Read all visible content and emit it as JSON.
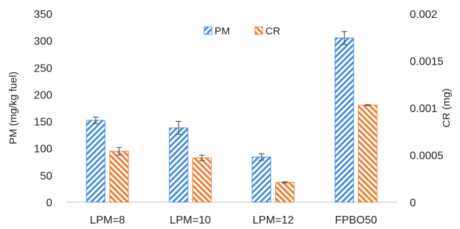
{
  "chart_data": {
    "type": "bar",
    "categories": [
      "LPM=8",
      "LPM=10",
      "LPM=12",
      "FPBO50"
    ],
    "series": [
      {
        "name": "PM",
        "axis": "left",
        "color": "#4a90d9",
        "pattern": "diagonal-hatch",
        "values": [
          152,
          138,
          84,
          305
        ],
        "errors": [
          6,
          12,
          6,
          12
        ]
      },
      {
        "name": "CR",
        "axis": "right",
        "color": "#ed7d31",
        "pattern": "diagonal-hatch",
        "values": [
          0.00054,
          0.00047,
          0.00021,
          0.00103
        ],
        "errors": [
          4e-05,
          3e-05,
          6e-06,
          5e-06
        ]
      }
    ],
    "xlabel": "",
    "ylabel": "PM (mg/kg fuel)",
    "ylabel_right": "CR (mg)",
    "ylim": [
      0,
      350
    ],
    "ylim_right": [
      0,
      0.002
    ],
    "yticks": [
      "0",
      "50",
      "100",
      "150",
      "200",
      "250",
      "300",
      "350"
    ],
    "yticks_right": [
      "0",
      "0.0005",
      "0.001",
      "0.0015",
      "0.002"
    ],
    "legend": {
      "placement": "top-center",
      "entries": [
        "PM",
        "CR"
      ]
    },
    "grid": false
  }
}
